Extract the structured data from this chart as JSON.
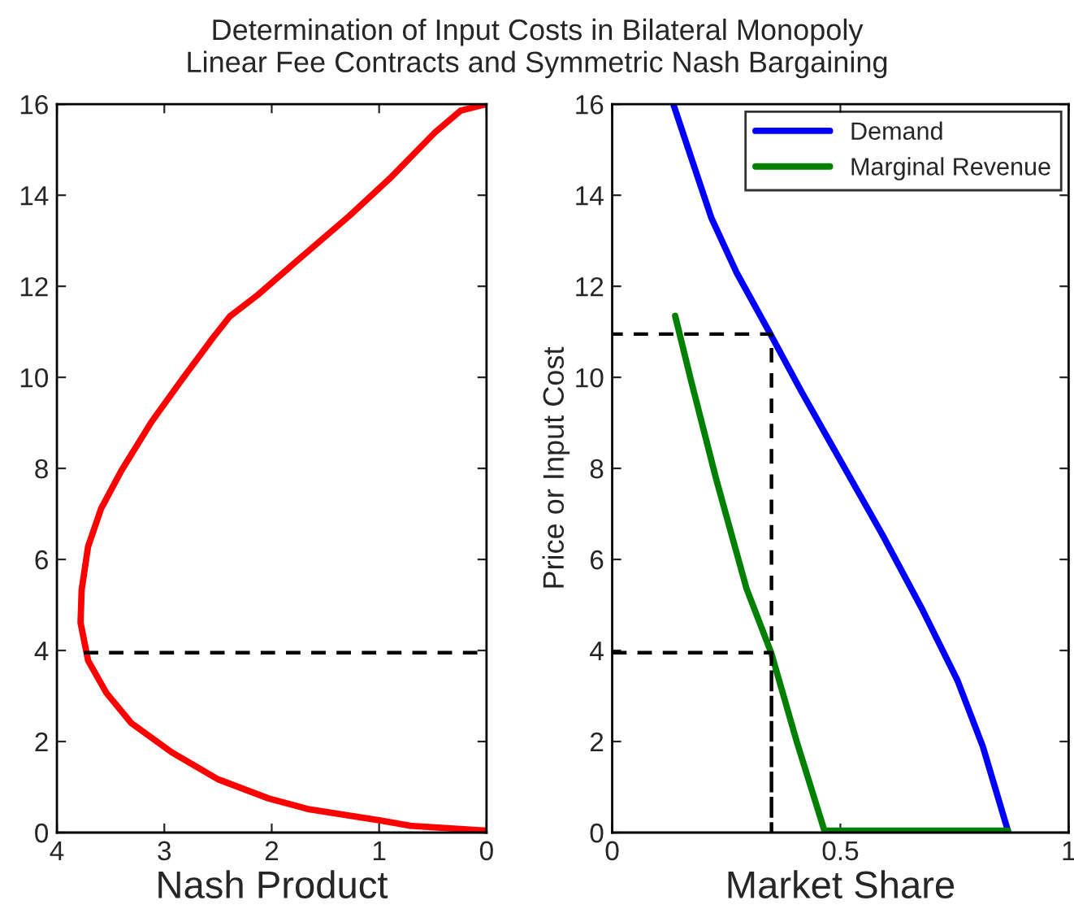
{
  "chart_data": [
    {
      "type": "line",
      "title": "Determination of Input Costs in Bilateral Monopoly",
      "subtitle": "Linear Fee Contracts and Symmetric Nash Bargaining",
      "xlabel": "Nash Product",
      "xlim": [
        4,
        0
      ],
      "xticks": [
        4,
        3,
        2,
        1,
        0
      ],
      "ylim": [
        0,
        16
      ],
      "yticks": [
        0,
        2,
        4,
        6,
        8,
        10,
        12,
        14,
        16
      ],
      "grid": false,
      "legend": false,
      "series": [
        {
          "color": "#ff0000",
          "line_style": "solid",
          "x": [
            0,
            0.71,
            1.0,
            1.65,
            2.03,
            2.5,
            2.93,
            3.31,
            3.54,
            3.71,
            3.78,
            3.77,
            3.71,
            3.59,
            3.4,
            3.12,
            2.83,
            2.55,
            2.39,
            2.13,
            1.75,
            1.28,
            0.9,
            0.48,
            0.24,
            0
          ],
          "values": [
            0.04,
            0.15,
            0.27,
            0.51,
            0.75,
            1.17,
            1.76,
            2.41,
            3.07,
            3.78,
            4.61,
            5.33,
            6.28,
            7.11,
            7.95,
            9.02,
            9.97,
            10.86,
            11.34,
            11.81,
            12.59,
            13.54,
            14.37,
            15.38,
            15.86,
            16
          ]
        },
        {
          "color": "#000000",
          "line_style": "dashed",
          "x": [
            3.75,
            0
          ],
          "values": [
            3.95,
            3.95
          ]
        }
      ]
    },
    {
      "type": "line",
      "xlabel": "Market Share",
      "ylabel": "Price or Input Cost",
      "xlim": [
        0,
        1
      ],
      "xticks": [
        0,
        0.5,
        1
      ],
      "ylim": [
        0,
        16
      ],
      "yticks": [
        0,
        2,
        4,
        6,
        8,
        10,
        12,
        14,
        16
      ],
      "grid": false,
      "legend": "top right",
      "series": [
        {
          "name": "Demand",
          "color": "#0000ff",
          "line_style": "solid",
          "x": [
            0.134,
            0.173,
            0.217,
            0.272,
            0.344,
            0.415,
            0.503,
            0.591,
            0.68,
            0.757,
            0.812,
            0.867
          ],
          "values": [
            16,
            14.83,
            13.51,
            12.31,
            11.0,
            9.68,
            8.12,
            6.56,
            4.89,
            3.33,
            1.89,
            0.04
          ]
        },
        {
          "name": "Marginal Revenue",
          "color": "#008000",
          "line_style": "solid",
          "x": [
            0.138,
            0.173,
            0.228,
            0.294,
            0.349,
            0.404,
            0.465,
            0.867
          ],
          "values": [
            11.35,
            9.92,
            7.76,
            5.37,
            3.93,
            2.01,
            0.04,
            0.04
          ]
        },
        {
          "color": "#000000",
          "line_style": "dashed",
          "x": [
            0,
            0.349,
            0.349,
            0.349,
            0
          ],
          "values": [
            3.95,
            3.95,
            0,
            10.95,
            10.95
          ]
        }
      ]
    }
  ]
}
